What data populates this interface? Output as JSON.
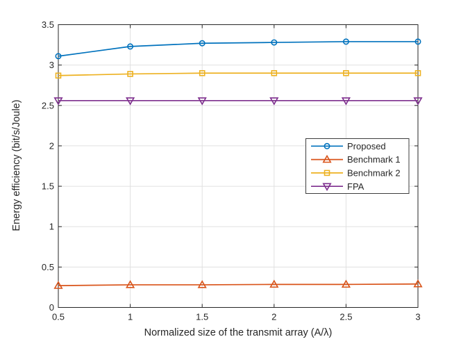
{
  "figure": {
    "background": "#ffffff"
  },
  "chart_data": {
    "type": "line",
    "title": "",
    "xlabel": "Normalized size of the transmit array (A/λ)",
    "ylabel": "Energy efficiency (bit/s/Joule)",
    "x": [
      0.5,
      1,
      1.5,
      2,
      2.5,
      3
    ],
    "xlim": [
      0.5,
      3
    ],
    "ylim": [
      0,
      3.5
    ],
    "xtick_labels": [
      "0.5",
      "1",
      "1.5",
      "2",
      "2.5",
      "3"
    ],
    "ytick_labels": [
      "0",
      "0.5",
      "1",
      "1.5",
      "2",
      "2.5",
      "3",
      "3.5"
    ],
    "grid": true,
    "legend": {
      "position": "inside-right-middle",
      "entries": [
        "Proposed",
        "Benchmark 1",
        "Benchmark 2",
        "FPA"
      ]
    },
    "series": [
      {
        "name": "Proposed",
        "color": "#0072BD",
        "marker": "circle",
        "values": [
          3.11,
          3.23,
          3.27,
          3.28,
          3.29,
          3.29
        ]
      },
      {
        "name": "Benchmark 1",
        "color": "#D95319",
        "marker": "triangle-up",
        "values": [
          0.27,
          0.28,
          0.28,
          0.285,
          0.285,
          0.29
        ]
      },
      {
        "name": "Benchmark 2",
        "color": "#EDB120",
        "marker": "square",
        "values": [
          2.87,
          2.89,
          2.9,
          2.9,
          2.9,
          2.9
        ]
      },
      {
        "name": "FPA",
        "color": "#7E2F8E",
        "marker": "triangle-down",
        "values": [
          2.56,
          2.56,
          2.56,
          2.56,
          2.56,
          2.56
        ]
      }
    ],
    "axis_color": "#262626",
    "grid_color": "#e0e0e0",
    "legend_border_color": "#3d3d3d"
  }
}
